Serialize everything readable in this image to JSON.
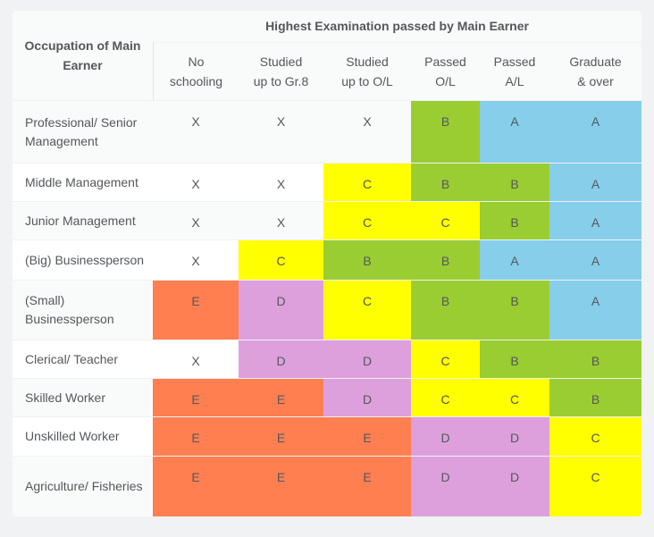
{
  "chart_data": {
    "type": "table",
    "title": "Highest Examination passed by Main Earner",
    "row_header": "Occupation of Main Earner",
    "columns": [
      {
        "label": "No schooling",
        "lines": [
          "No",
          "schooling"
        ]
      },
      {
        "label": "Studied up to Gr.8",
        "lines": [
          "Studied",
          "up to Gr.8"
        ]
      },
      {
        "label": "Studied up to O/L",
        "lines": [
          "Studied",
          "up to O/L"
        ]
      },
      {
        "label": "Passed O/L",
        "lines": [
          "Passed",
          "O/L"
        ]
      },
      {
        "label": "Passed A/L",
        "lines": [
          "Passed",
          "A/L"
        ]
      },
      {
        "label": "Graduate & over",
        "lines": [
          "Graduate",
          "& over"
        ]
      }
    ],
    "rows": [
      {
        "occupation": "Professional/ Senior Management",
        "grades": [
          "X",
          "X",
          "X",
          "B",
          "A",
          "A"
        ]
      },
      {
        "occupation": "Middle Management",
        "grades": [
          "X",
          "X",
          "C",
          "B",
          "B",
          "A"
        ]
      },
      {
        "occupation": "Junior Management",
        "grades": [
          "X",
          "X",
          "C",
          "C",
          "B",
          "A"
        ]
      },
      {
        "occupation": "(Big) Businessperson",
        "grades": [
          "X",
          "C",
          "B",
          "B",
          "A",
          "A"
        ]
      },
      {
        "occupation": "(Small) Businessperson",
        "grades": [
          "E",
          "D",
          "C",
          "B",
          "B",
          "A"
        ]
      },
      {
        "occupation": "Clerical/ Teacher",
        "grades": [
          "X",
          "D",
          "D",
          "C",
          "B",
          "B"
        ]
      },
      {
        "occupation": "Skilled Worker",
        "grades": [
          "E",
          "E",
          "D",
          "C",
          "C",
          "B"
        ]
      },
      {
        "occupation": "Unskilled Worker",
        "grades": [
          "E",
          "E",
          "E",
          "D",
          "D",
          "C"
        ]
      },
      {
        "occupation": "Agriculture/ Fisheries",
        "grades": [
          "E",
          "E",
          "E",
          "D",
          "D",
          "C"
        ]
      }
    ],
    "grade_colors": {
      "A": "#87ceeb",
      "B": "#9acd32",
      "C": "#ffff00",
      "D": "#dda0dd",
      "E": "#ff7f50",
      "X": ""
    }
  }
}
